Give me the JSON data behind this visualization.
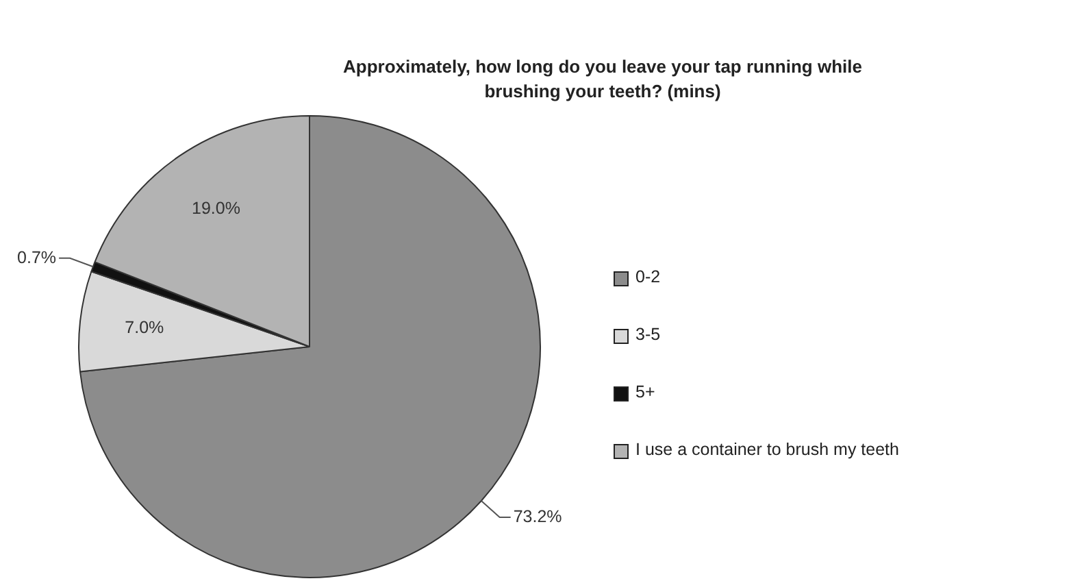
{
  "chart_data": {
    "type": "pie",
    "title": "Approximately, how long do you leave your tap running while brushing your teeth? (mins)",
    "categories": [
      "0-2",
      "3-5",
      "5+",
      "I use a container to brush my teeth"
    ],
    "values": [
      73.2,
      7.0,
      0.7,
      19.0
    ],
    "colors": [
      "#8c8c8c",
      "#d9d9d9",
      "#111111",
      "#b3b3b3"
    ],
    "value_labels": [
      "73.2%",
      "7.0%",
      "0.7%",
      "19.0%"
    ],
    "legend": "right"
  }
}
